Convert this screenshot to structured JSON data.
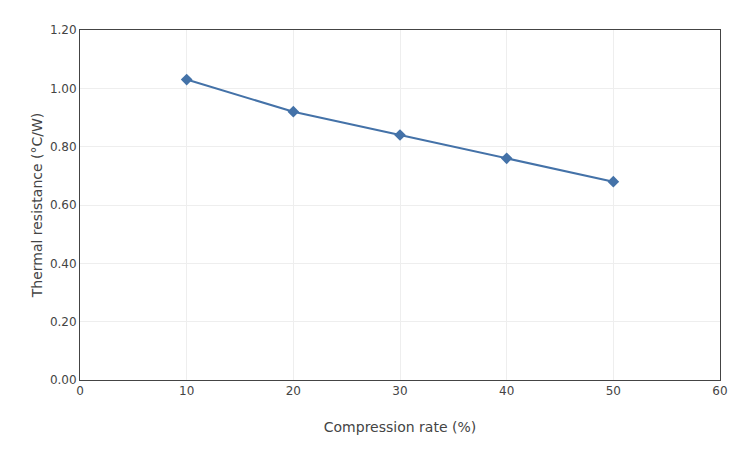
{
  "chart_data": {
    "type": "line",
    "x": [
      10,
      20,
      30,
      40,
      50
    ],
    "values": [
      1.03,
      0.92,
      0.84,
      0.76,
      0.68
    ],
    "color": "#4472a8",
    "marker": "diamond",
    "xlabel": "Compression rate (%)",
    "ylabel": "Thermal resistance (°C/W)",
    "xlim": [
      0,
      60
    ],
    "ylim": [
      0.0,
      1.2
    ],
    "xticks": [
      0,
      10,
      20,
      30,
      40,
      50,
      60
    ],
    "yticks": [
      {
        "value": 0.0,
        "label": "0.00"
      },
      {
        "value": 0.2,
        "label": "0.20"
      },
      {
        "value": 0.4,
        "label": "0.40"
      },
      {
        "value": 0.6,
        "label": "0.60"
      },
      {
        "value": 0.8,
        "label": "0.80"
      },
      {
        "value": 1.0,
        "label": "1.00"
      },
      {
        "value": 1.2,
        "label": "1.20"
      }
    ],
    "grid": true
  }
}
